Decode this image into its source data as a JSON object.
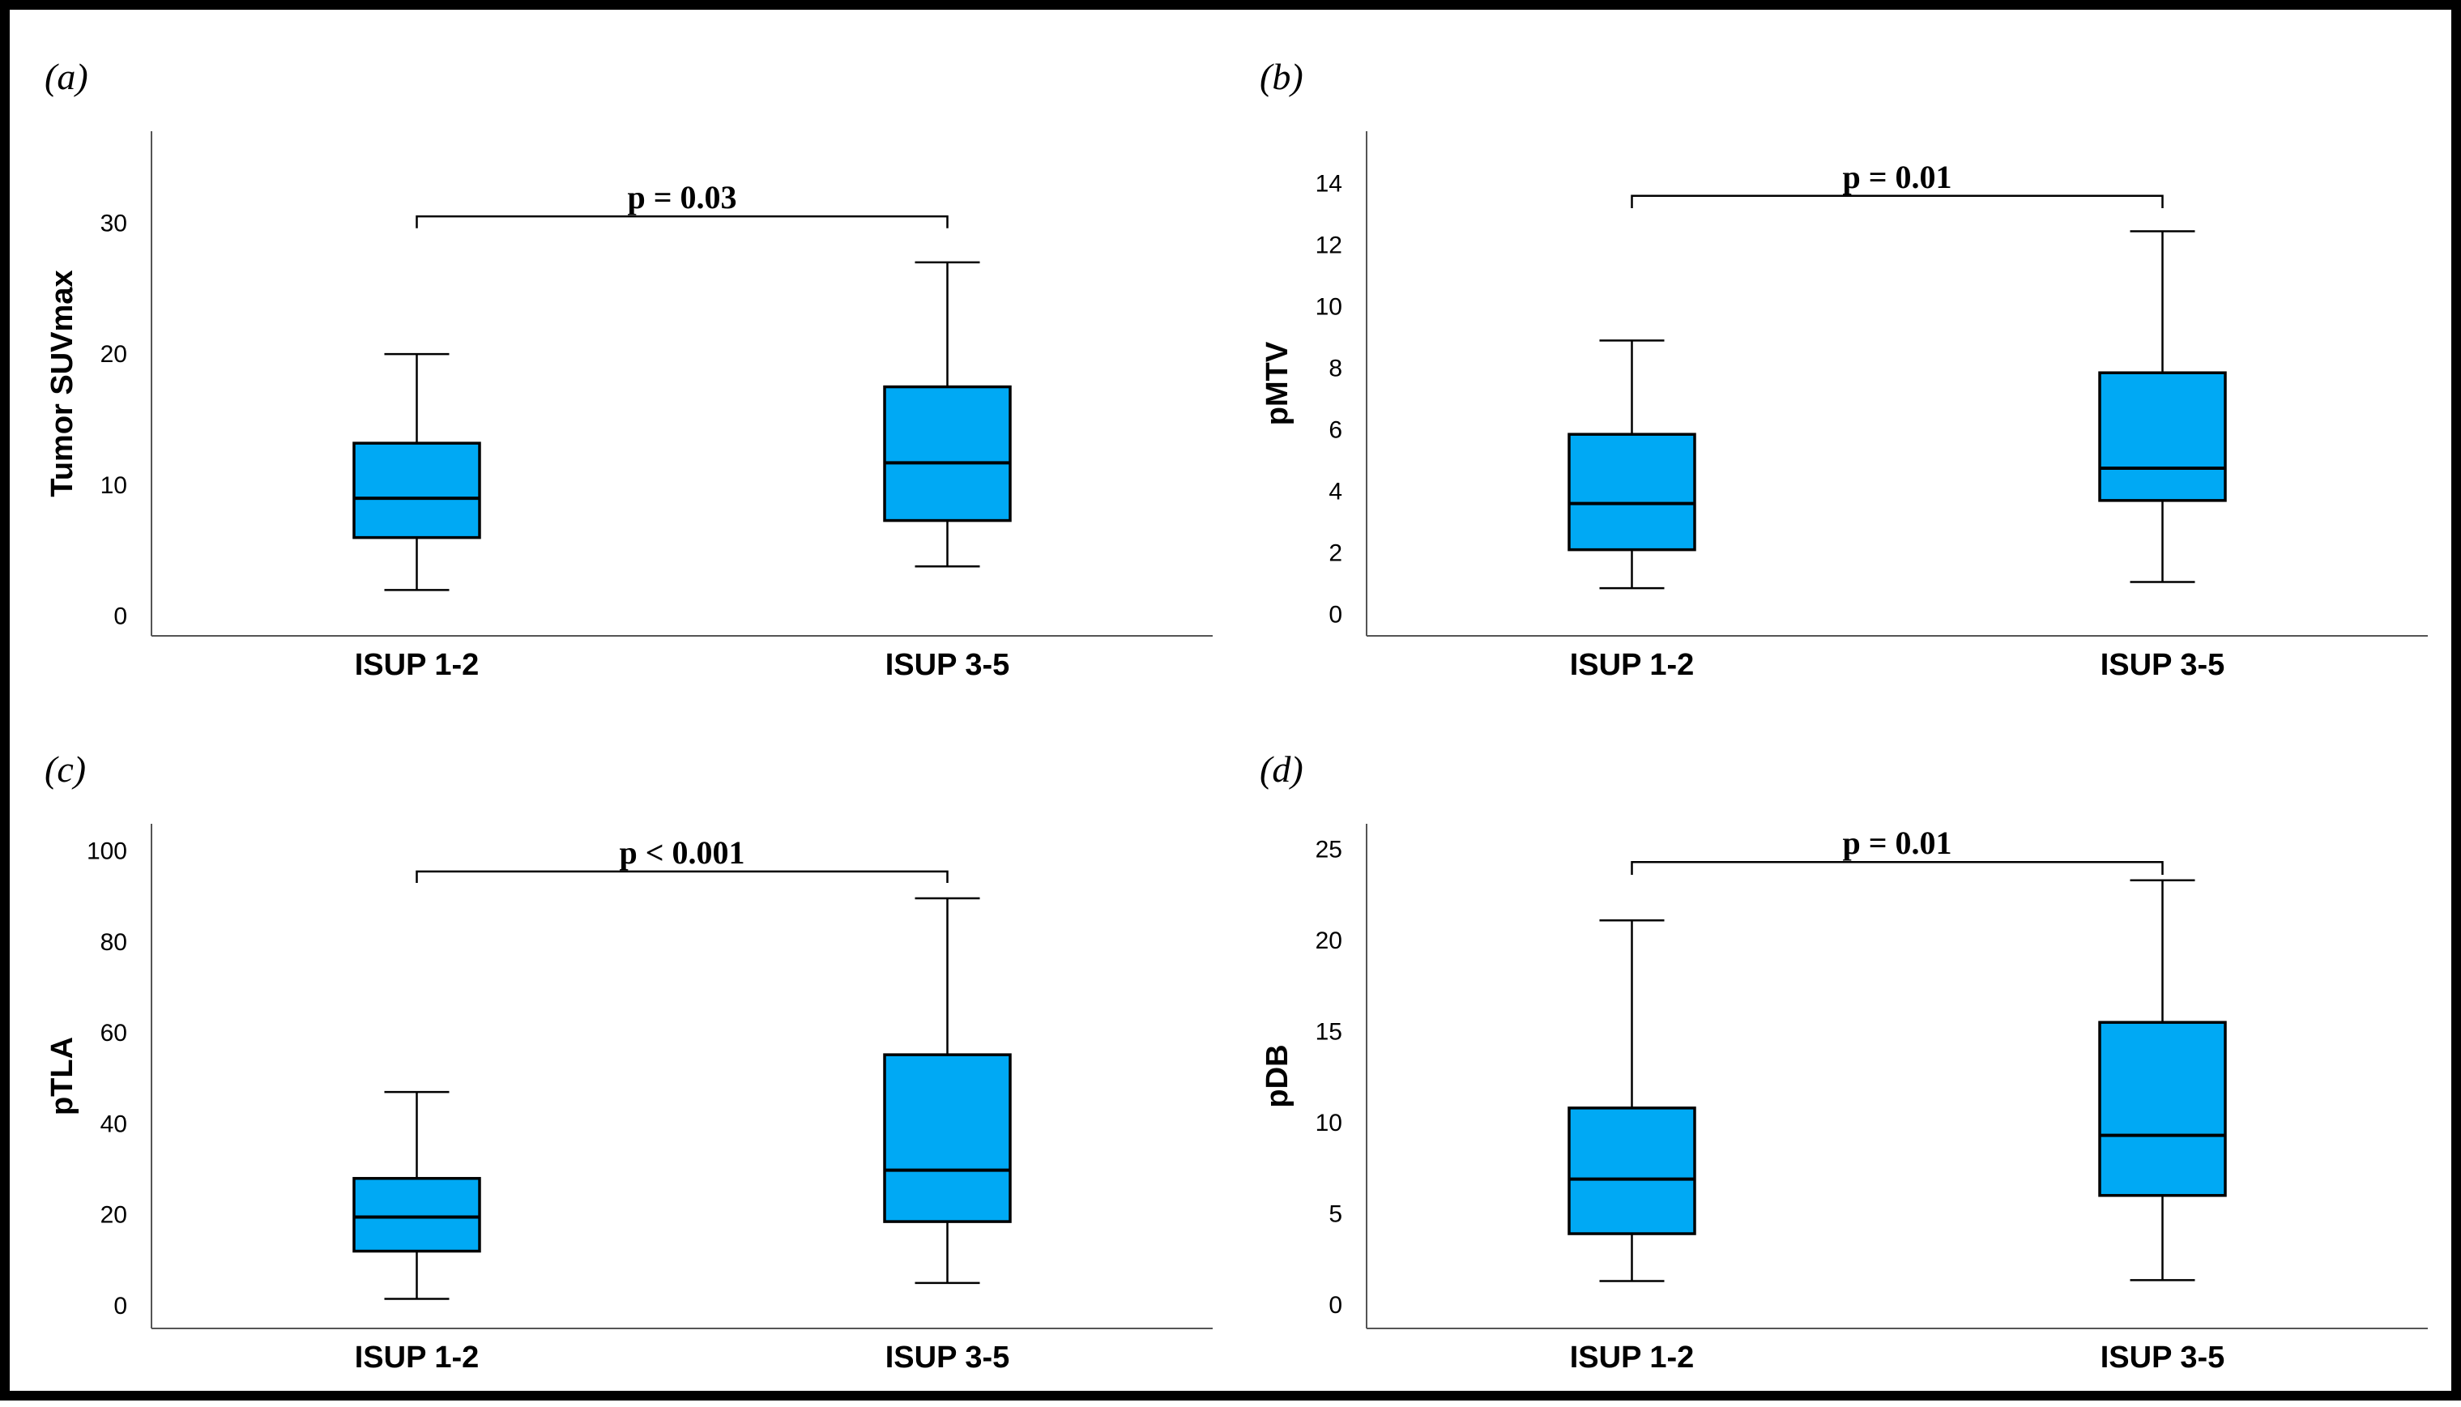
{
  "style": {
    "box_fill": "#00A9F4",
    "line_color": "#000000"
  },
  "chart_data": [
    {
      "type": "box",
      "panel_label": "(a)",
      "ylabel": "Tumor SUVmax",
      "xlabel": "",
      "categories": [
        "ISUP 1-2",
        "ISUP 3-5"
      ],
      "ylim": [
        -1.5,
        37
      ],
      "yticks": [
        0,
        10,
        20,
        30
      ],
      "boxes": [
        {
          "category": "ISUP 1-2",
          "whisker_low": 2,
          "q1": 6,
          "median": 9,
          "q3": 13.2,
          "whisker_high": 20
        },
        {
          "category": "ISUP 3-5",
          "whisker_low": 3.8,
          "q1": 7.3,
          "median": 11.7,
          "q3": 17.5,
          "whisker_high": 27
        }
      ],
      "annotation": {
        "text": "p = 0.03",
        "y": 30.5,
        "drop": 0.9
      }
    },
    {
      "type": "box",
      "panel_label": "(b)",
      "ylabel": "pMTV",
      "xlabel": "",
      "categories": [
        "ISUP 1-2",
        "ISUP 3-5"
      ],
      "ylim": [
        -0.7,
        15.7
      ],
      "yticks": [
        0,
        2,
        4,
        6,
        8,
        10,
        12,
        14
      ],
      "boxes": [
        {
          "category": "ISUP 1-2",
          "whisker_low": 0.85,
          "q1": 2.1,
          "median": 3.6,
          "q3": 5.85,
          "whisker_high": 8.9
        },
        {
          "category": "ISUP 3-5",
          "whisker_low": 1.05,
          "q1": 3.7,
          "median": 4.75,
          "q3": 7.85,
          "whisker_high": 12.45
        }
      ],
      "annotation": {
        "text": "p = 0.01",
        "y": 13.6,
        "drop": 0.4
      }
    },
    {
      "type": "box",
      "panel_label": "(c)",
      "ylabel": "pTLA",
      "xlabel": "",
      "categories": [
        "ISUP 1-2",
        "ISUP 3-5"
      ],
      "ylim": [
        -5,
        106
      ],
      "yticks": [
        0,
        20,
        40,
        60,
        80,
        100
      ],
      "boxes": [
        {
          "category": "ISUP 1-2",
          "whisker_low": 1.5,
          "q1": 12,
          "median": 19.5,
          "q3": 28,
          "whisker_high": 47
        },
        {
          "category": "ISUP 3-5",
          "whisker_low": 5,
          "q1": 18.5,
          "median": 29.8,
          "q3": 55.2,
          "whisker_high": 89.6
        }
      ],
      "annotation": {
        "text": "p < 0.001",
        "y": 95.5,
        "drop": 2.5
      }
    },
    {
      "type": "box",
      "panel_label": "(d)",
      "ylabel": "pDB",
      "xlabel": "",
      "categories": [
        "ISUP 1-2",
        "ISUP 3-5"
      ],
      "ylim": [
        -1.3,
        26.4
      ],
      "yticks": [
        0,
        5,
        10,
        15,
        20,
        25
      ],
      "boxes": [
        {
          "category": "ISUP 1-2",
          "whisker_low": 1.3,
          "q1": 3.9,
          "median": 6.9,
          "q3": 10.8,
          "whisker_high": 21.1
        },
        {
          "category": "ISUP 3-5",
          "whisker_low": 1.35,
          "q1": 6,
          "median": 9.3,
          "q3": 15.5,
          "whisker_high": 23.3
        }
      ],
      "annotation": {
        "text": "p = 0.01",
        "y": 24.3,
        "drop": 0.7
      }
    }
  ]
}
